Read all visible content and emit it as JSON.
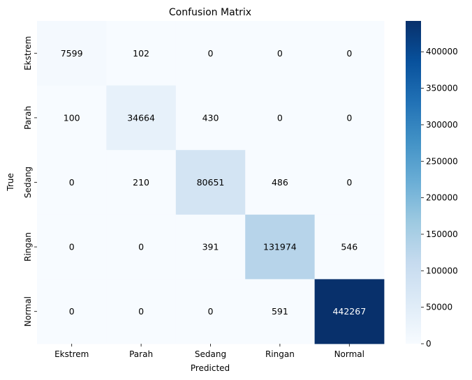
{
  "chart_data": {
    "type": "heatmap",
    "title": "Confusion Matrix",
    "xlabel": "Predicted",
    "ylabel": "True",
    "x_categories": [
      "Ekstrem",
      "Parah",
      "Sedang",
      "Ringan",
      "Normal"
    ],
    "y_categories": [
      "Ekstrem",
      "Parah",
      "Sedang",
      "Ringan",
      "Normal"
    ],
    "values": [
      [
        7599,
        102,
        0,
        0,
        0
      ],
      [
        100,
        34664,
        430,
        0,
        0
      ],
      [
        0,
        210,
        80651,
        486,
        0
      ],
      [
        0,
        0,
        391,
        131974,
        546
      ],
      [
        0,
        0,
        0,
        591,
        442267
      ]
    ],
    "colorbar": {
      "colormap": "Blues",
      "range": [
        0,
        442267
      ],
      "ticks": [
        0,
        50000,
        100000,
        150000,
        200000,
        250000,
        300000,
        350000,
        400000
      ]
    },
    "grid": false,
    "colors": {
      "low": "#f7fbff",
      "high": "#08306b",
      "dark_text": "#ffffff",
      "light_text": "#000000"
    }
  }
}
